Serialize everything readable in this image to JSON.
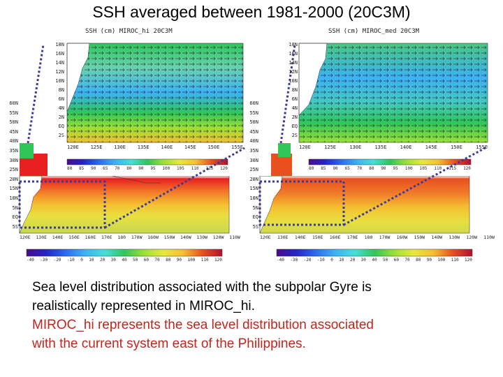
{
  "title": "SSH averaged between 1981-2000 (20C3M)",
  "left_panel": {
    "inset_title": "SSH (cm) MIROC_hi 20C3M",
    "inset_lat_ticks": [
      "18N",
      "16N",
      "14N",
      "12N",
      "10N",
      "8N",
      "6N",
      "4N",
      "2N",
      "EQ",
      "2S"
    ],
    "inset_lon_ticks": [
      "120E",
      "125E",
      "130E",
      "135E",
      "140E",
      "145E",
      "150E",
      "155E"
    ],
    "inset_colorbar_ticks": [
      "80",
      "85",
      "90",
      "65",
      "70",
      "80",
      "90",
      "95",
      "100",
      "105",
      "110",
      "115",
      "120"
    ],
    "main_lat_ticks": [
      "60N",
      "55N",
      "50N",
      "45N",
      "40N",
      "35N",
      "30N",
      "25N",
      "20N",
      "15N",
      "10N",
      "5N",
      "EQ",
      "5S"
    ],
    "main_lon_ticks": [
      "120E",
      "130E",
      "140E",
      "150E",
      "160E",
      "170E",
      "180",
      "170W",
      "160W",
      "150W",
      "140W",
      "130W",
      "120W",
      "110W"
    ],
    "main_colorbar_ticks": [
      "-40",
      "-30",
      "-20",
      "-10",
      "0",
      "10",
      "20",
      "30",
      "40",
      "50",
      "60",
      "70",
      "80",
      "90",
      "100",
      "110",
      "120"
    ]
  },
  "right_panel": {
    "inset_title": "SSH (cm) MIROC_med 20C3M",
    "inset_lat_ticks": [
      "18N",
      "16N",
      "14N",
      "12N",
      "10N",
      "8N",
      "6N",
      "4N",
      "2N",
      "EQ",
      "2S"
    ],
    "inset_lon_ticks": [
      "120E",
      "125E",
      "130E",
      "135E",
      "140E",
      "145E",
      "150E",
      "155E"
    ],
    "inset_colorbar_ticks": [
      "80",
      "85",
      "90",
      "65",
      "70",
      "80",
      "90",
      "95",
      "100",
      "105",
      "110",
      "115",
      "120"
    ],
    "main_lat_ticks": [
      "60N",
      "55N",
      "50N",
      "45N",
      "40N",
      "35N",
      "30N",
      "25N",
      "20N",
      "15N",
      "10N",
      "5N",
      "EQ",
      "5S"
    ],
    "main_lon_ticks": [
      "120E",
      "130E",
      "140E",
      "150E",
      "160E",
      "170E",
      "180",
      "170W",
      "160W",
      "150W",
      "140W",
      "130W",
      "120W",
      "110W"
    ],
    "main_colorbar_ticks": [
      "-40",
      "-30",
      "-20",
      "-10",
      "0",
      "10",
      "20",
      "30",
      "40",
      "50",
      "60",
      "70",
      "80",
      "90",
      "100",
      "110",
      "120"
    ]
  },
  "caption": {
    "line1": "Sea level distribution associated with the subpolar Gyre is",
    "line2": "realistically represented in MIROC_hi.",
    "line3": "MIROC_hi represents the sea level distribution associated",
    "line4": "with the  current system east of the Philippines."
  },
  "colors": {
    "caption_black": "#000000",
    "caption_red": "#c0261e",
    "dotted_box": "#3a3a9a",
    "colorbar": [
      "#4b0c8a",
      "#2424c8",
      "#2a6cf0",
      "#3db2f5",
      "#45e0d8",
      "#2fc65a",
      "#9be037",
      "#e8e83c",
      "#f5c030",
      "#f09030",
      "#e85020",
      "#d0201c",
      "#b01030"
    ]
  }
}
